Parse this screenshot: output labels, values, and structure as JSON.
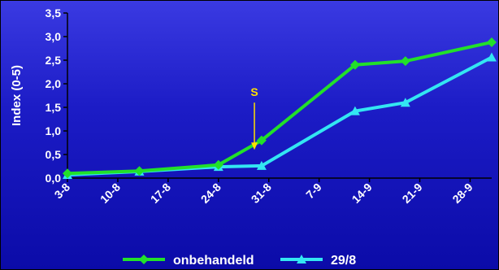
{
  "chart_data": {
    "type": "line",
    "x": [
      "3-8",
      "10-8",
      "17-8",
      "24-8",
      "31-8",
      "7-9",
      "14-9",
      "21-9",
      "28-9"
    ],
    "x_positions_days": [
      0,
      7,
      14,
      21,
      28,
      35,
      42,
      49,
      56
    ],
    "ylabel": "Index (0-5)",
    "ylim": [
      0,
      3.5
    ],
    "yticks": [
      "0,0",
      "0,5",
      "1,0",
      "1,5",
      "2,0",
      "2,5",
      "3,0",
      "3,5"
    ],
    "grid": false,
    "legend_placement": "bottom",
    "series": [
      {
        "name": "onbehandeld",
        "color": "#22e02a",
        "marker": "diamond",
        "points": [
          {
            "x": "3-8",
            "y": 0.1
          },
          {
            "x": "13-8",
            "y": 0.15
          },
          {
            "x": "24-8",
            "y": 0.28
          },
          {
            "x": "30-8",
            "y": 0.8
          },
          {
            "x": "12-9",
            "y": 2.4
          },
          {
            "x": "19-9",
            "y": 2.48
          },
          {
            "x": "1-10",
            "y": 2.88
          }
        ]
      },
      {
        "name": "29/8",
        "color": "#33e6f2",
        "marker": "triangle",
        "points": [
          {
            "x": "3-8",
            "y": 0.07
          },
          {
            "x": "13-8",
            "y": 0.14
          },
          {
            "x": "24-8",
            "y": 0.24
          },
          {
            "x": "30-8",
            "y": 0.26
          },
          {
            "x": "12-9",
            "y": 1.42
          },
          {
            "x": "19-9",
            "y": 1.6
          },
          {
            "x": "1-10",
            "y": 2.56
          }
        ]
      }
    ],
    "annotation": {
      "label": "S",
      "x": "29-8",
      "y_top": 1.6,
      "y_bottom": 0.6,
      "color": "#ffe000"
    }
  }
}
